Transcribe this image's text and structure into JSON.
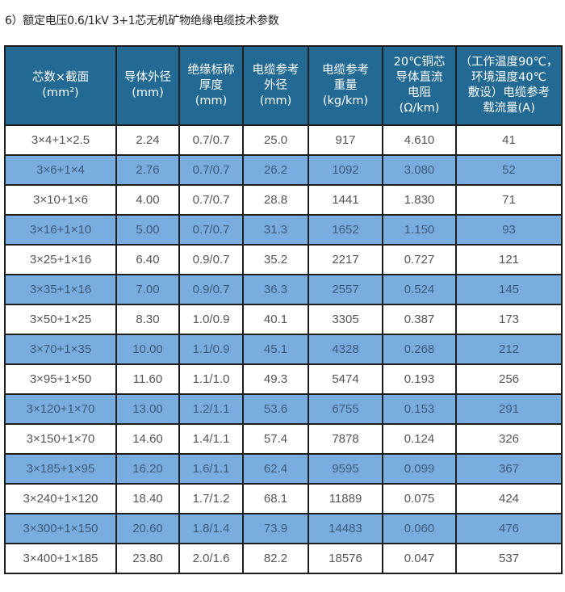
{
  "title": "6）额定电压0.6/1kV  3+1芯无机矿物绝缘电缆技术参数",
  "colors": {
    "header_bg": "#226a93",
    "alt_row_bg": "#79ade0",
    "row_bg": "#ffffff"
  },
  "headers": [
    [
      "芯数×截面",
      "(mm²)"
    ],
    [
      "导体外径",
      "(mm)"
    ],
    [
      "绝缘标称",
      "厚度",
      "(mm)"
    ],
    [
      "电缆参考",
      "外径",
      "(mm)"
    ],
    [
      "电缆参考",
      "重量",
      "(kg/km)"
    ],
    [
      "20℃铜芯",
      "导体直流",
      "电阻",
      "(Ω/km)"
    ],
    [
      "（工作温度90℃，",
      "环境温度40℃",
      "敷设）电缆参考",
      "载流量(A)"
    ]
  ],
  "rows": [
    [
      "3×4+1×2.5",
      "2.24",
      "0.7/0.7",
      "25.0",
      "917",
      "4.610",
      "41"
    ],
    [
      "3×6+1×4",
      "2.76",
      "0.7/0.7",
      "26.2",
      "1092",
      "3.080",
      "52"
    ],
    [
      "3×10+1×6",
      "4.00",
      "0.7/0.7",
      "28.8",
      "1441",
      "1.830",
      "71"
    ],
    [
      "3×16+1×10",
      "5.00",
      "0.7/0.7",
      "31.3",
      "1652",
      "1.150",
      "93"
    ],
    [
      "3×25+1×16",
      "6.40",
      "0.9/0.7",
      "35.2",
      "2217",
      "0.727",
      "121"
    ],
    [
      "3×35+1×16",
      "7.00",
      "0.9/0.7",
      "36.3",
      "2557",
      "0.524",
      "145"
    ],
    [
      "3×50+1×25",
      "8.30",
      "1.0/0.9",
      "40.1",
      "3305",
      "0.387",
      "173"
    ],
    [
      "3×70+1×35",
      "10.00",
      "1.1/0.9",
      "45.1",
      "4328",
      "0.268",
      "212"
    ],
    [
      "3×95+1×50",
      "11.60",
      "1.1/1.0",
      "49.3",
      "5474",
      "0.193",
      "256"
    ],
    [
      "3×120+1×70",
      "13.00",
      "1.2/1.1",
      "53.6",
      "6755",
      "0.153",
      "291"
    ],
    [
      "3×150+1×70",
      "14.60",
      "1.4/1.1",
      "57.4",
      "7878",
      "0.124",
      "326"
    ],
    [
      "3×185+1×95",
      "16.20",
      "1.6/1.1",
      "62.4",
      "9595",
      "0.099",
      "367"
    ],
    [
      "3×240+1×120",
      "18.40",
      "1.7/1.2",
      "68.1",
      "11889",
      "0.075",
      "424"
    ],
    [
      "3×300+1×150",
      "20.60",
      "1.8/1.4",
      "73.9",
      "14483",
      "0.060",
      "476"
    ],
    [
      "3×400+1×185",
      "23.80",
      "2.0/1.6",
      "82.2",
      "18576",
      "0.047",
      "537"
    ]
  ]
}
